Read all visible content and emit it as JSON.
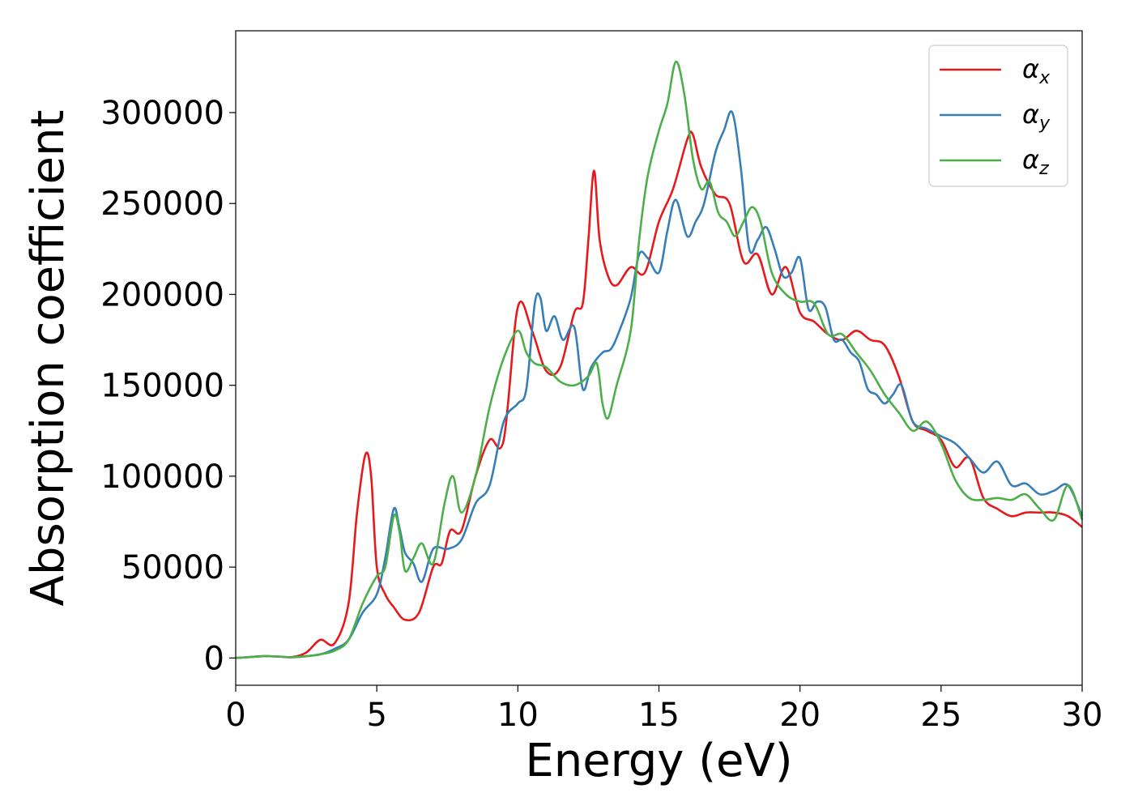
{
  "chart_data": {
    "type": "line",
    "title": "",
    "xlabel": "Energy (eV)",
    "ylabel": "Absorption coefficient",
    "xlim": [
      0,
      30
    ],
    "ylim": [
      -15000,
      345000
    ],
    "xticks": [
      0,
      5,
      10,
      15,
      20,
      25,
      30
    ],
    "yticks": [
      0,
      50000,
      100000,
      150000,
      200000,
      250000,
      300000
    ],
    "grid": false,
    "legend_position": "top-right",
    "series": [
      {
        "name": "α",
        "subscript": "x",
        "color": "#e41a1c",
        "x": [
          0,
          0.5,
          1,
          1.5,
          2,
          2.5,
          3,
          3.5,
          4,
          4.3,
          4.6,
          4.8,
          5,
          5.3,
          5.6,
          6,
          6.5,
          7,
          7.3,
          7.6,
          8,
          8.5,
          9,
          9.5,
          10,
          10.5,
          11,
          11.5,
          12,
          12.3,
          12.5,
          12.7,
          12.9,
          13.2,
          13.5,
          14,
          14.5,
          15,
          15.5,
          16,
          16.2,
          16.5,
          17,
          17.5,
          18,
          18.5,
          19,
          19.5,
          20,
          20.5,
          21,
          21.5,
          22,
          22.5,
          23,
          23.5,
          24,
          24.5,
          25,
          25.5,
          26,
          26.5,
          27,
          27.5,
          28,
          28.5,
          29,
          29.5,
          30
        ],
        "values": [
          0,
          500,
          1000,
          800,
          500,
          3000,
          10000,
          8000,
          30000,
          80000,
          112000,
          100000,
          50000,
          35000,
          28000,
          21000,
          25000,
          50000,
          52000,
          70000,
          70000,
          100000,
          120000,
          120000,
          193000,
          180000,
          158000,
          160000,
          190000,
          195000,
          230000,
          268000,
          230000,
          210000,
          205000,
          215000,
          212000,
          240000,
          258000,
          285000,
          288000,
          270000,
          255000,
          250000,
          218000,
          222000,
          200000,
          215000,
          190000,
          185000,
          178000,
          175000,
          180000,
          175000,
          172000,
          155000,
          130000,
          125000,
          120000,
          105000,
          110000,
          88000,
          82000,
          78000,
          80000,
          80000,
          80000,
          78000,
          72000
        ]
      },
      {
        "name": "α",
        "subscript": "y",
        "color": "#377eb8",
        "x": [
          0,
          0.5,
          1,
          1.5,
          2,
          2.5,
          3,
          3.5,
          4,
          4.5,
          5,
          5.3,
          5.6,
          5.8,
          6,
          6.3,
          6.6,
          7,
          7.5,
          8,
          8.5,
          9,
          9.5,
          10,
          10.3,
          10.6,
          10.8,
          11,
          11.3,
          11.6,
          12,
          12.3,
          12.6,
          13,
          13.3,
          13.6,
          14,
          14.3,
          14.6,
          15,
          15.3,
          15.6,
          16,
          16.3,
          16.6,
          17,
          17.3,
          17.6,
          17.9,
          18.2,
          18.5,
          18.8,
          19.1,
          19.4,
          19.7,
          20,
          20.3,
          20.6,
          20.9,
          21.2,
          21.5,
          21.8,
          22.1,
          22.4,
          22.7,
          23,
          23.3,
          23.6,
          24,
          24.5,
          25,
          25.5,
          26,
          26.5,
          27,
          27.5,
          28,
          28.5,
          29,
          29.5,
          30
        ],
        "values": [
          0,
          500,
          1000,
          800,
          400,
          1000,
          2000,
          5000,
          10000,
          25000,
          35000,
          55000,
          82000,
          72000,
          58000,
          52000,
          42000,
          60000,
          60000,
          65000,
          85000,
          95000,
          130000,
          140000,
          148000,
          195000,
          198000,
          180000,
          188000,
          175000,
          182000,
          148000,
          160000,
          168000,
          170000,
          180000,
          198000,
          222000,
          220000,
          212000,
          235000,
          252000,
          232000,
          240000,
          250000,
          278000,
          290000,
          300000,
          270000,
          225000,
          230000,
          237000,
          225000,
          210000,
          212000,
          220000,
          192000,
          196000,
          193000,
          175000,
          175000,
          168000,
          163000,
          148000,
          145000,
          140000,
          145000,
          150000,
          130000,
          126000,
          122000,
          118000,
          110000,
          102000,
          108000,
          95000,
          96000,
          90000,
          92000,
          95000,
          78000
        ]
      },
      {
        "name": "α",
        "subscript": "z",
        "color": "#4daf4a",
        "x": [
          0,
          0.5,
          1,
          1.5,
          2,
          2.5,
          3,
          3.5,
          4,
          4.5,
          5,
          5.3,
          5.6,
          5.8,
          6,
          6.3,
          6.6,
          7,
          7.4,
          7.7,
          8,
          8.5,
          9,
          9.5,
          10,
          10.3,
          10.6,
          11,
          11.5,
          12,
          12.5,
          12.8,
          13,
          13.2,
          13.5,
          14,
          14.3,
          14.6,
          15,
          15.3,
          15.6,
          15.9,
          16.2,
          16.5,
          16.8,
          17.1,
          17.4,
          17.7,
          18,
          18.3,
          18.6,
          19,
          19.5,
          20,
          20.5,
          21,
          21.5,
          22,
          22.5,
          23,
          23.5,
          24,
          24.5,
          25,
          25.5,
          26,
          26.5,
          27,
          27.5,
          28,
          28.5,
          29,
          29.5,
          30
        ],
        "values": [
          0,
          500,
          1000,
          800,
          400,
          1000,
          2000,
          4000,
          10000,
          30000,
          45000,
          50000,
          78000,
          70000,
          48000,
          55000,
          63000,
          52000,
          85000,
          100000,
          80000,
          100000,
          138000,
          165000,
          180000,
          168000,
          162000,
          160000,
          152000,
          150000,
          155000,
          162000,
          140000,
          132000,
          150000,
          180000,
          230000,
          265000,
          290000,
          305000,
          328000,
          310000,
          275000,
          258000,
          262000,
          245000,
          240000,
          232000,
          240000,
          248000,
          240000,
          212000,
          200000,
          196000,
          195000,
          178000,
          178000,
          168000,
          158000,
          145000,
          135000,
          125000,
          130000,
          118000,
          98000,
          88000,
          87000,
          88000,
          87000,
          90000,
          82000,
          76000,
          95000,
          76000
        ]
      }
    ]
  }
}
